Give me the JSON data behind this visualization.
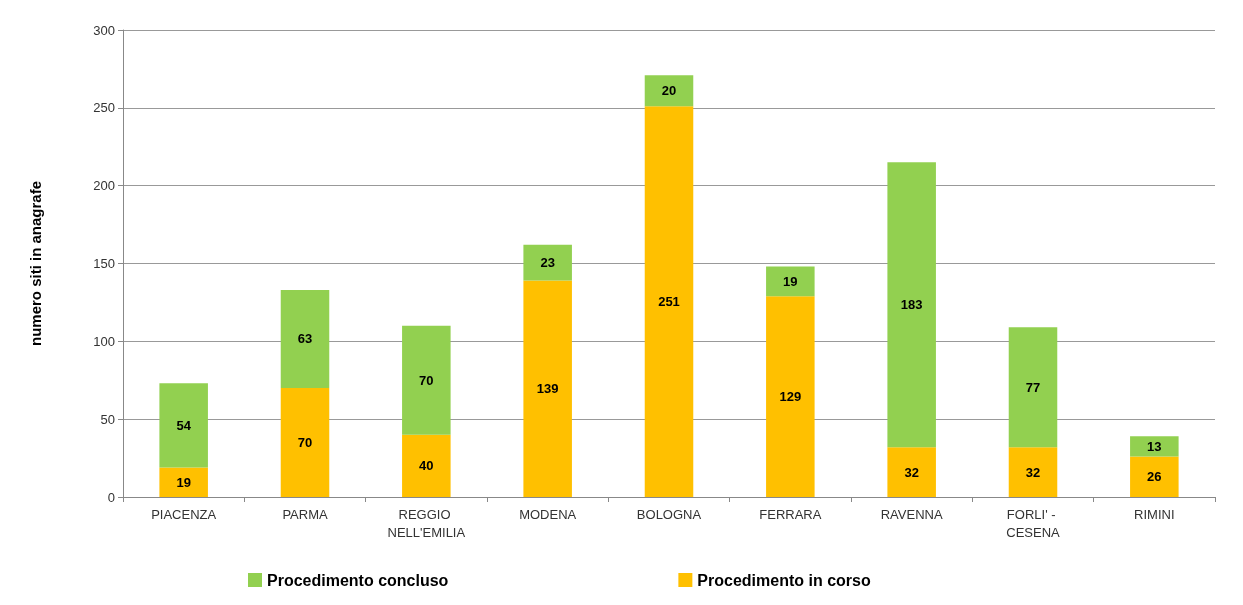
{
  "chart_data": {
    "type": "bar",
    "ylabel": "numero siti in anagrafe",
    "categories": [
      "PIACENZA",
      "PARMA",
      "REGGIO NELL'EMILIA",
      "MODENA",
      "BOLOGNA",
      "FERRARA",
      "RAVENNA",
      "FORLI' - CESENA",
      "RIMINI"
    ],
    "series": [
      {
        "name": "Procedimento in corso",
        "color": "#ffc000",
        "values": [
          19,
          70,
          40,
          139,
          251,
          129,
          32,
          32,
          26
        ]
      },
      {
        "name": "Procedimento concluso",
        "color": "#92d050",
        "values": [
          54,
          63,
          70,
          23,
          20,
          19,
          183,
          77,
          13
        ]
      }
    ],
    "stacked": true,
    "data_labels": true,
    "ylim": [
      0,
      300
    ],
    "yticks": [
      0,
      50,
      100,
      150,
      200,
      250,
      300
    ],
    "grid": "y",
    "legend": "bottom"
  }
}
